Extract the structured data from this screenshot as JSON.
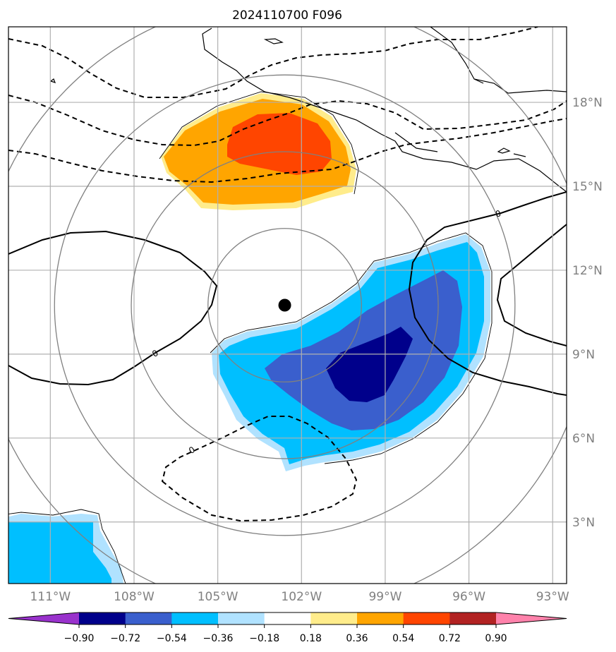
{
  "title": "2024110700 F096",
  "map": {
    "lon_range": [
      -112.5,
      -92.5
    ],
    "lat_range": [
      0.8,
      20.7
    ],
    "lat_ticks": [
      {
        "value": 3,
        "label": "3°N"
      },
      {
        "value": 6,
        "label": "6°N"
      },
      {
        "value": 9,
        "label": "9°N"
      },
      {
        "value": 12,
        "label": "12°N"
      },
      {
        "value": 15,
        "label": "15°N"
      },
      {
        "value": 18,
        "label": "18°N"
      }
    ],
    "lon_ticks": [
      {
        "value": -111,
        "label": "111°W"
      },
      {
        "value": -108,
        "label": "108°W"
      },
      {
        "value": -105,
        "label": "105°W"
      },
      {
        "value": -102,
        "label": "102°W"
      },
      {
        "value": -99,
        "label": "99°W"
      },
      {
        "value": -96,
        "label": "96°W"
      },
      {
        "value": -93,
        "label": "93°W"
      }
    ],
    "storm_center": {
      "lon": -102.6,
      "lat": 10.75
    },
    "range_rings_deg": [
      2.75,
      5.5,
      8.25,
      11.0
    ],
    "contour_labels": [
      "0",
      "0",
      "0"
    ],
    "colors": {
      "gridline": "#b0b0b0",
      "ring": "#808080",
      "coast": "#000000"
    }
  },
  "colorbar": {
    "levels": [
      -0.9,
      -0.72,
      -0.54,
      -0.36,
      -0.18,
      0.18,
      0.36,
      0.54,
      0.72,
      0.9
    ],
    "tick_labels": [
      "−0.90",
      "−0.72",
      "−0.54",
      "−0.36",
      "−0.18",
      "0.18",
      "0.36",
      "0.54",
      "0.72",
      "0.90"
    ],
    "colors": [
      "#9932cc",
      "#00008b",
      "#3a5fcd",
      "#00bfff",
      "#b0e2ff",
      "#ffffff",
      "#ffec8b",
      "#ffa500",
      "#ff4500",
      "#b22222",
      "#ff82ab"
    ],
    "extend": "both"
  }
}
